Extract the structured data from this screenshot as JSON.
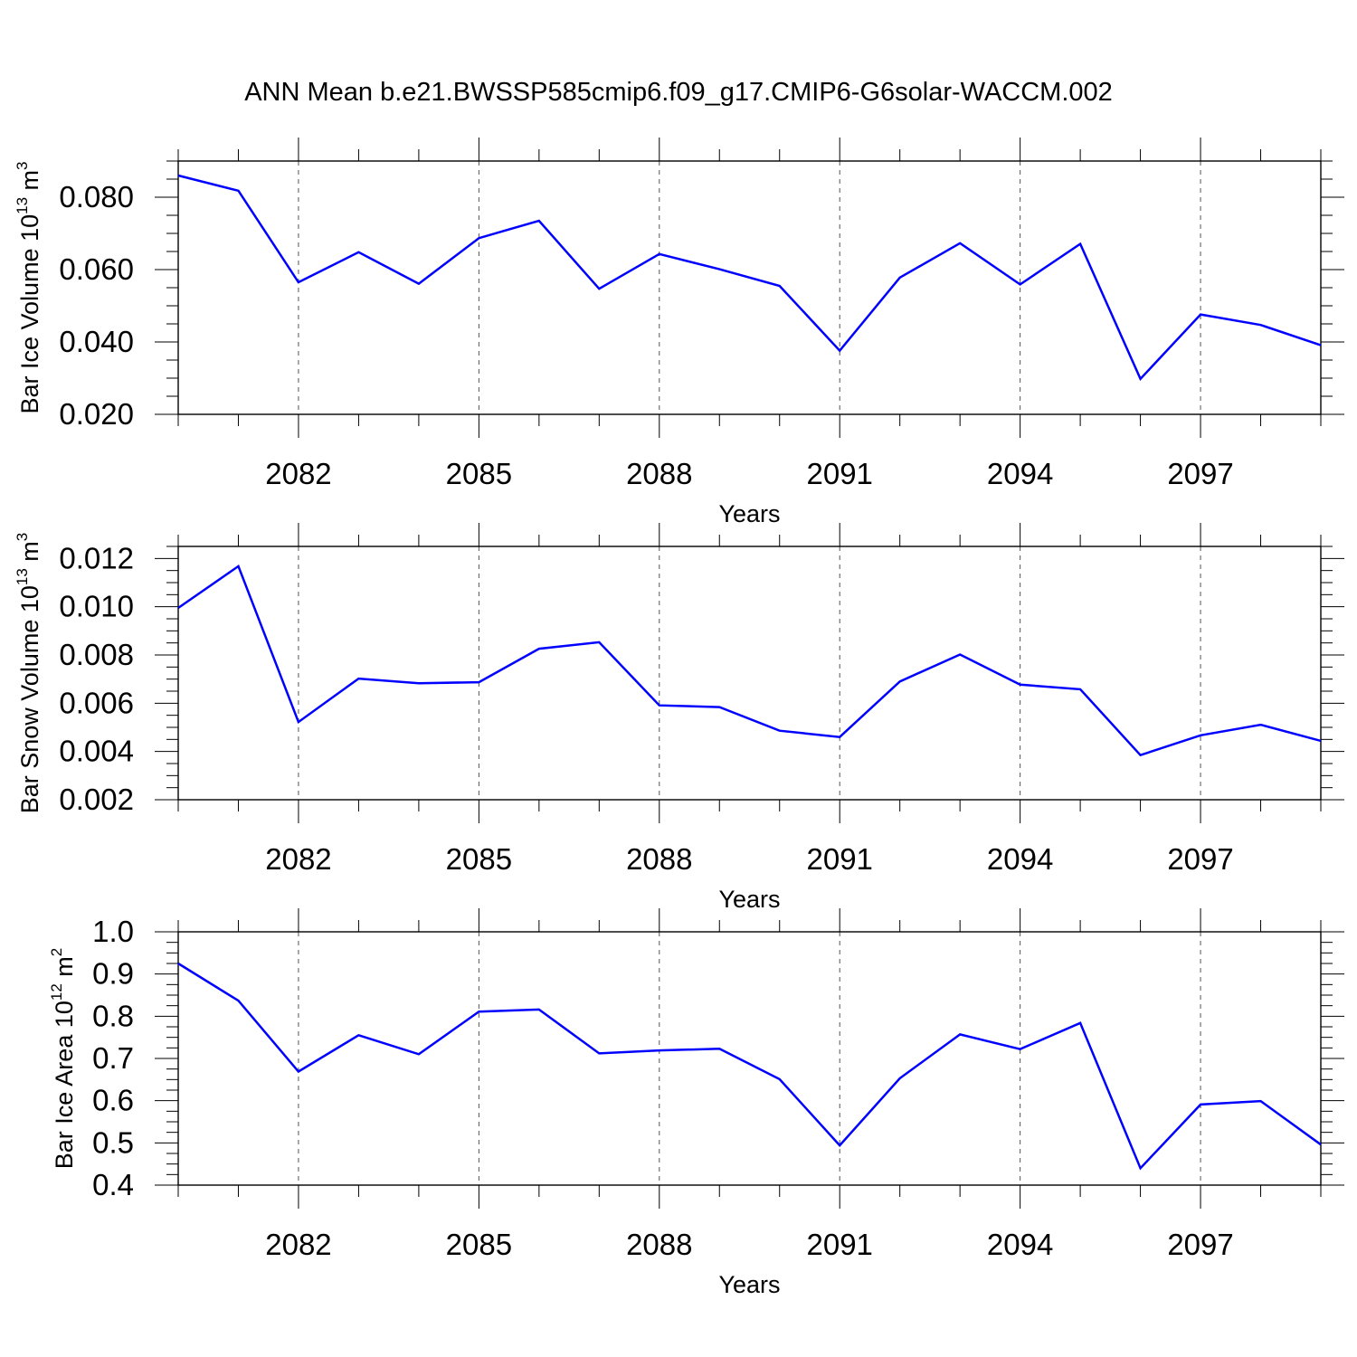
{
  "title": "ANN Mean b.e21.BWSSP585cmip6.f09_g17.CMIP6-G6solar-WACCM.002",
  "colors": {
    "line": "#0000ff",
    "axis": "#000000",
    "grid": "#555555"
  },
  "chart_data": [
    {
      "type": "line",
      "ylabel_main": "Bar Ice Volume 10",
      "ylabel_exp": "13",
      "ylabel_unit": " m",
      "ylabel_unit_exp": "3",
      "xlabel": "Years",
      "xlim": [
        2080,
        2099
      ],
      "ylim": [
        0.02,
        0.09
      ],
      "y_ticks": [
        "0.020",
        "0.040",
        "0.060",
        "0.080"
      ],
      "x_ticks": [
        "2082",
        "2085",
        "2088",
        "2091",
        "2094",
        "2097"
      ],
      "grid": "vertical dashed at labeled years",
      "series": [
        {
          "x": [
            2080,
            2081,
            2082,
            2083,
            2084,
            2085,
            2086,
            2087,
            2088,
            2089,
            2090,
            2091,
            2092,
            2093,
            2094,
            2095,
            2096,
            2097,
            2098,
            2099
          ],
          "values": [
            0.086,
            0.0818,
            0.0565,
            0.0648,
            0.0561,
            0.0687,
            0.0735,
            0.0547,
            0.0643,
            0.0601,
            0.0555,
            0.0376,
            0.0578,
            0.0673,
            0.0559,
            0.0671,
            0.0298,
            0.0476,
            0.0447,
            0.0391
          ]
        }
      ]
    },
    {
      "type": "line",
      "ylabel_main": "Bar Snow Volume 10",
      "ylabel_exp": "13",
      "ylabel_unit": " m",
      "ylabel_unit_exp": "3",
      "xlabel": "Years",
      "xlim": [
        2080,
        2099
      ],
      "ylim": [
        0.002,
        0.0125
      ],
      "y_ticks": [
        "0.002",
        "0.004",
        "0.006",
        "0.008",
        "0.010",
        "0.012"
      ],
      "x_ticks": [
        "2082",
        "2085",
        "2088",
        "2091",
        "2094",
        "2097"
      ],
      "grid": "vertical dashed at labeled years",
      "series": [
        {
          "x": [
            2080,
            2081,
            2082,
            2083,
            2084,
            2085,
            2086,
            2087,
            2088,
            2089,
            2090,
            2091,
            2092,
            2093,
            2094,
            2095,
            2096,
            2097,
            2098,
            2099
          ],
          "values": [
            0.00995,
            0.01168,
            0.00522,
            0.00702,
            0.00683,
            0.00687,
            0.00826,
            0.00853,
            0.00591,
            0.00584,
            0.00486,
            0.0046,
            0.0069,
            0.00802,
            0.00677,
            0.00658,
            0.00385,
            0.00467,
            0.00511,
            0.00444
          ]
        }
      ]
    },
    {
      "type": "line",
      "ylabel_main": "Bar Ice Area 10",
      "ylabel_exp": "12",
      "ylabel_unit": " m",
      "ylabel_unit_exp": "2",
      "xlabel": "Years",
      "xlim": [
        2080,
        2099
      ],
      "ylim": [
        0.4,
        1.0
      ],
      "y_ticks": [
        "0.4",
        "0.5",
        "0.6",
        "0.7",
        "0.8",
        "0.9",
        "1.0"
      ],
      "x_ticks": [
        "2082",
        "2085",
        "2088",
        "2091",
        "2094",
        "2097"
      ],
      "grid": "vertical dashed at labeled years",
      "series": [
        {
          "x": [
            2080,
            2081,
            2082,
            2083,
            2084,
            2085,
            2086,
            2087,
            2088,
            2089,
            2090,
            2091,
            2092,
            2093,
            2094,
            2095,
            2096,
            2097,
            2098,
            2099
          ],
          "values": [
            0.925,
            0.837,
            0.669,
            0.755,
            0.71,
            0.811,
            0.816,
            0.712,
            0.719,
            0.723,
            0.651,
            0.494,
            0.653,
            0.757,
            0.722,
            0.784,
            0.44,
            0.591,
            0.599,
            0.496
          ]
        }
      ]
    }
  ]
}
